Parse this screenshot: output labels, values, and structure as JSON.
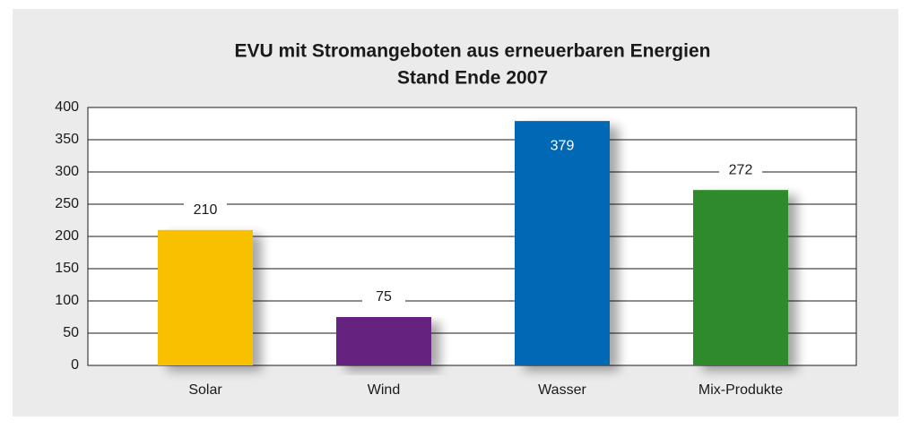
{
  "chart_data": {
    "type": "bar",
    "title": "EVU mit Stromangeboten aus erneuerbaren Energien",
    "subtitle": "Stand Ende 2007",
    "categories": [
      "Solar",
      "Wind",
      "Wasser",
      "Mix-Produkte"
    ],
    "values": [
      210,
      75,
      379,
      272
    ],
    "colors": [
      "#f9c000",
      "#66217f",
      "#0068b4",
      "#2f8a29"
    ],
    "ylim": [
      0,
      400
    ],
    "yticks": [
      0,
      50,
      100,
      150,
      200,
      250,
      300,
      350,
      400
    ],
    "grid": true
  }
}
